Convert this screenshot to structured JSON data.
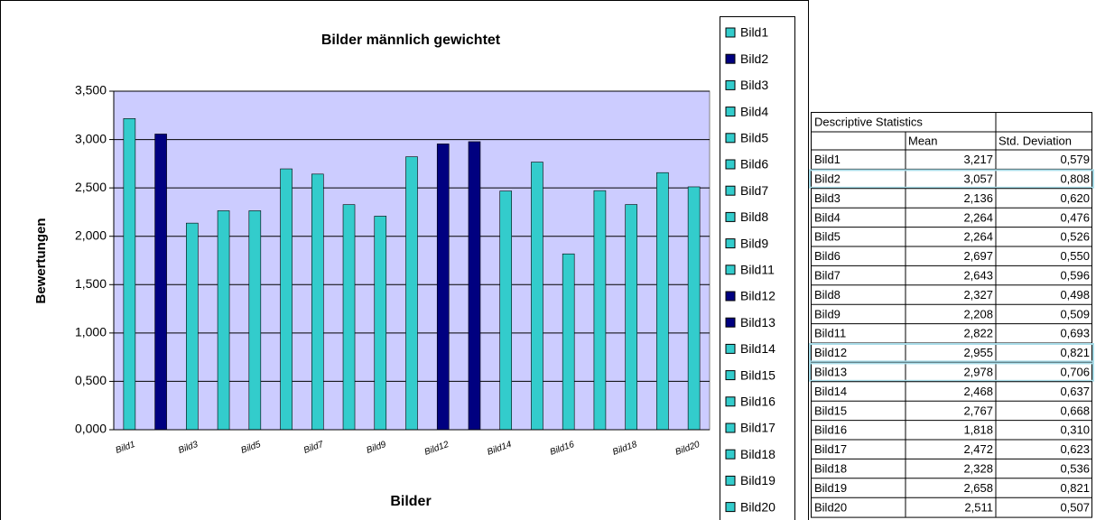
{
  "chart_data": {
    "type": "bar",
    "title": "Bilder männlich gewichtet",
    "x_label": "Bilder",
    "y_label": "Bewertungen",
    "categories": [
      "Bild1",
      "Bild2",
      "Bild3",
      "Bild4",
      "Bild5",
      "Bild6",
      "Bild7",
      "Bild8",
      "Bild9",
      "Bild11",
      "Bild12",
      "Bild13",
      "Bild14",
      "Bild15",
      "Bild16",
      "Bild17",
      "Bild18",
      "Bild19",
      "Bild20"
    ],
    "values": [
      3.217,
      3.057,
      2.136,
      2.264,
      2.264,
      2.697,
      2.643,
      2.327,
      2.208,
      2.822,
      2.955,
      2.978,
      2.468,
      2.767,
      1.818,
      2.472,
      2.328,
      2.658,
      2.511
    ],
    "colors": [
      "#33cccc",
      "#000080",
      "#33cccc",
      "#33cccc",
      "#33cccc",
      "#33cccc",
      "#33cccc",
      "#33cccc",
      "#33cccc",
      "#33cccc",
      "#000080",
      "#000080",
      "#33cccc",
      "#33cccc",
      "#33cccc",
      "#33cccc",
      "#33cccc",
      "#33cccc",
      "#33cccc"
    ],
    "ylim": [
      0,
      3.5
    ],
    "yticks": [
      {
        "value": 0,
        "label": "0,000"
      },
      {
        "value": 0.5,
        "label": "0,500"
      },
      {
        "value": 1,
        "label": "1,000"
      },
      {
        "value": 1.5,
        "label": "1,500"
      },
      {
        "value": 2,
        "label": "2,000"
      },
      {
        "value": 2.5,
        "label": "2,500"
      },
      {
        "value": 3,
        "label": "3,000"
      },
      {
        "value": 3.5,
        "label": "3,500"
      }
    ],
    "grid": true,
    "legend": "right"
  },
  "table": {
    "title": "Descriptive Statistics",
    "header": [
      "Mean",
      "Std. Deviation"
    ],
    "rows": [
      [
        "Bild1",
        "3,217",
        "0,579"
      ],
      [
        "Bild2",
        "3,057",
        "0,808"
      ],
      [
        "Bild3",
        "2,136",
        "0,620"
      ],
      [
        "Bild4",
        "2,264",
        "0,476"
      ],
      [
        "Bild5",
        "2,264",
        "0,526"
      ],
      [
        "Bild6",
        "2,697",
        "0,550"
      ],
      [
        "Bild7",
        "2,643",
        "0,596"
      ],
      [
        "Bild8",
        "2,327",
        "0,498"
      ],
      [
        "Bild9",
        "2,208",
        "0,509"
      ],
      [
        "Bild11",
        "2,822",
        "0,693"
      ],
      [
        "Bild12",
        "2,955",
        "0,821"
      ],
      [
        "Bild13",
        "2,978",
        "0,706"
      ],
      [
        "Bild14",
        "2,468",
        "0,637"
      ],
      [
        "Bild15",
        "2,767",
        "0,668"
      ],
      [
        "Bild16",
        "1,818",
        "0,310"
      ],
      [
        "Bild17",
        "2,472",
        "0,623"
      ],
      [
        "Bild18",
        "2,328",
        "0,536"
      ],
      [
        "Bild19",
        "2,658",
        "0,821"
      ],
      [
        "Bild20",
        "2,511",
        "0,507"
      ]
    ]
  }
}
